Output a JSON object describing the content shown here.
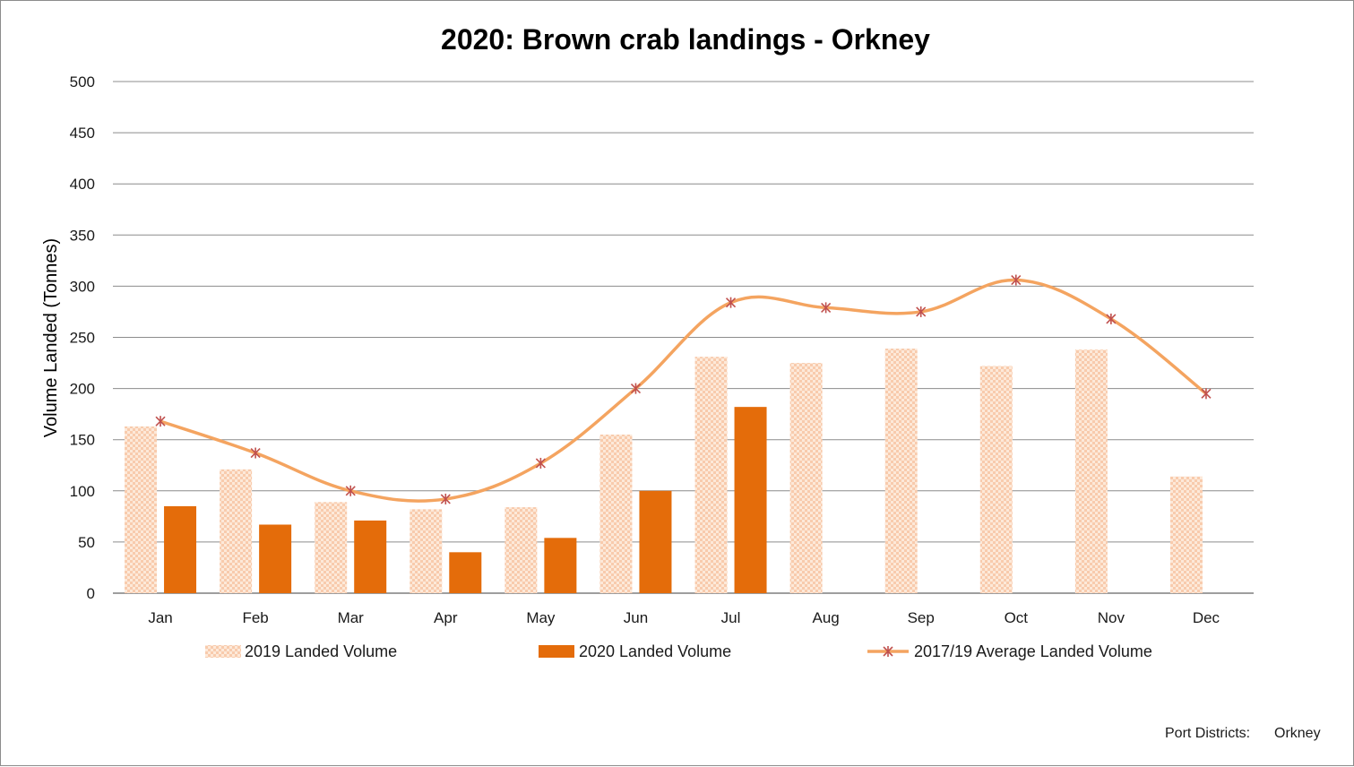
{
  "chart_data": {
    "type": "bar",
    "title": "2020: Brown crab landings - Orkney",
    "xlabel": "",
    "ylabel": "Volume Landed (Tonnes)",
    "ylim": [
      0,
      500
    ],
    "yticks": [
      0,
      50,
      100,
      150,
      200,
      250,
      300,
      350,
      400,
      450,
      500
    ],
    "grid": true,
    "legend_position": "bottom",
    "categories": [
      "Jan",
      "Feb",
      "Mar",
      "Apr",
      "May",
      "Jun",
      "Jul",
      "Aug",
      "Sep",
      "Oct",
      "Nov",
      "Dec"
    ],
    "series": [
      {
        "name": "2019  Landed Volume",
        "type": "bar",
        "pattern": "checkered",
        "color": "#f8cbad",
        "values": [
          163,
          121,
          89,
          82,
          84,
          155,
          231,
          225,
          239,
          222,
          238,
          114
        ]
      },
      {
        "name": "2020 Landed Volume",
        "type": "bar",
        "color": "#e46c0a",
        "values": [
          85,
          67,
          71,
          40,
          54,
          100,
          182,
          null,
          null,
          null,
          null,
          null
        ]
      },
      {
        "name": "2017/19 Average Landed Volume",
        "type": "line",
        "color": "#f4a460",
        "marker_color": "#c0504d",
        "marker": "asterisk",
        "values": [
          168,
          137,
          100,
          92,
          127,
          200,
          284,
          279,
          275,
          306,
          268,
          195
        ]
      }
    ]
  },
  "footer": {
    "label": "Port Districts:",
    "value": "Orkney"
  }
}
